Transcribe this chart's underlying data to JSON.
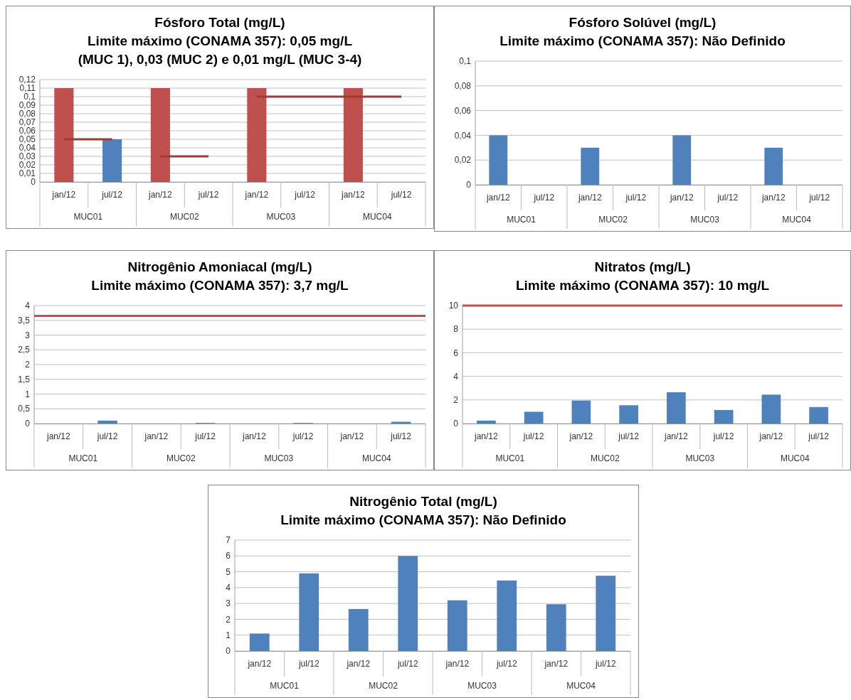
{
  "chart_data": [
    {
      "type": "bar",
      "title": "Fósforo Total (mg/L)",
      "subtitle": "Limite máximo (CONAMA 357): 0,05 mg/L\n(MUC 1), 0,03 (MUC 2) e 0,01 mg/L (MUC 3-4)",
      "categories": [
        "jan/12",
        "jul/12",
        "jan/12",
        "jul/12",
        "jan/12",
        "jul/12",
        "jan/12",
        "jul/12"
      ],
      "series": [
        {
          "colors": [
            "#c0504d",
            "#4f81bd",
            "#c0504d",
            null,
            "#c0504d",
            null,
            "#c0504d",
            null
          ],
          "values": [
            0.11,
            0.05,
            0.11,
            null,
            0.11,
            null,
            0.11,
            null
          ]
        },
        {
          "type": "step",
          "color": "#9e3a37",
          "values": [
            0.05,
            0.05,
            0.03,
            0.03,
            0.1,
            0.1,
            0.1,
            0.1
          ]
        }
      ],
      "ylim": [
        0,
        0.12
      ],
      "yticks": [
        0,
        {
          "value": 0.01,
          "label": "0,01"
        },
        {
          "value": 0.02,
          "label": "0,02"
        },
        {
          "value": 0.03,
          "label": "0,03"
        },
        {
          "value": 0.04,
          "label": "0,04"
        },
        {
          "value": 0.05,
          "label": "0,05"
        },
        {
          "value": 0.06,
          "label": "0,06"
        },
        {
          "value": 0.07,
          "label": "0,07"
        },
        {
          "value": 0.08,
          "label": "0,08"
        },
        {
          "value": 0.09,
          "label": "0,09"
        },
        {
          "value": 0.1,
          "label": "0,1"
        },
        {
          "value": 0.11,
          "label": "0,11"
        },
        {
          "value": 0.12,
          "label": "0,12"
        }
      ],
      "grid": true,
      "annotations": [
        "MUC01",
        "MUC02",
        "MUC03",
        "MUC04"
      ]
    },
    {
      "type": "bar",
      "title": "Fósforo Solúvel (mg/L)",
      "subtitle": "Limite máximo (CONAMA 357): Não Definido",
      "categories": [
        "jan/12",
        "jul/12",
        "jan/12",
        "jul/12",
        "jan/12",
        "jul/12",
        "jan/12",
        "jul/12"
      ],
      "series": [
        {
          "color": "#4f81bd",
          "values": [
            0.04,
            null,
            0.03,
            null,
            0.04,
            null,
            0.03,
            null
          ]
        }
      ],
      "ylim": [
        0,
        0.1
      ],
      "yticks": [
        0,
        {
          "value": 0.02,
          "label": "0,02"
        },
        {
          "value": 0.04,
          "label": "0,04"
        },
        {
          "value": 0.06,
          "label": "0,06"
        },
        {
          "value": 0.08,
          "label": "0,08"
        },
        {
          "value": 0.1,
          "label": "0,1"
        }
      ],
      "grid": true,
      "annotations": [
        "MUC01",
        "MUC02",
        "MUC03",
        "MUC04"
      ]
    },
    {
      "type": "bar",
      "title": "Nitrogênio Amoniacal (mg/L)",
      "subtitle": "Limite máximo (CONAMA 357): 3,7 mg/L",
      "categories": [
        "jan/12",
        "jul/12",
        "jan/12",
        "jul/12",
        "jan/12",
        "jul/12",
        "jan/12",
        "jul/12"
      ],
      "series": [
        {
          "color": "#4f81bd",
          "values": [
            null,
            0.1,
            null,
            0.02,
            null,
            0.02,
            null,
            0.06
          ]
        }
      ],
      "ylim": [
        0,
        4
      ],
      "yticks": [
        0,
        {
          "value": 0.5,
          "label": "0,5"
        },
        1,
        {
          "value": 1.5,
          "label": "1,5"
        },
        2,
        {
          "value": 2.5,
          "label": "2,5"
        },
        3,
        {
          "value": 3.5,
          "label": "3,5"
        },
        4
      ],
      "grid": true,
      "ref_lines": [
        {
          "axis": "y",
          "value": 3.65,
          "color": "#c0504d"
        }
      ],
      "annotations": [
        "MUC01",
        "MUC02",
        "MUC03",
        "MUC04"
      ]
    },
    {
      "type": "bar",
      "title": "Nitratos (mg/L)",
      "subtitle": "Limite máximo (CONAMA 357): 10 mg/L",
      "categories": [
        "jan/12",
        "jul/12",
        "jan/12",
        "jul/12",
        "jan/12",
        "jul/12",
        "jan/12",
        "jul/12"
      ],
      "series": [
        {
          "color": "#4f81bd",
          "values": [
            0.25,
            1.0,
            1.95,
            1.55,
            2.65,
            1.15,
            2.45,
            1.4
          ]
        }
      ],
      "ylim": [
        0,
        10
      ],
      "yticks": [
        0,
        2,
        4,
        6,
        8,
        10
      ],
      "grid": true,
      "ref_lines": [
        {
          "axis": "y",
          "value": 10,
          "color": "#c0504d"
        }
      ],
      "annotations": [
        "MUC01",
        "MUC02",
        "MUC03",
        "MUC04"
      ]
    },
    {
      "type": "bar",
      "title": "Nitrogênio Total (mg/L)",
      "subtitle": "Limite máximo (CONAMA 357): Não Definido",
      "categories": [
        "jan/12",
        "jul/12",
        "jan/12",
        "jul/12",
        "jan/12",
        "jul/12",
        "jan/12",
        "jul/12"
      ],
      "series": [
        {
          "color": "#4f81bd",
          "values": [
            1.1,
            4.9,
            2.65,
            6.0,
            3.2,
            4.45,
            2.95,
            4.75
          ]
        }
      ],
      "ylim": [
        0,
        7
      ],
      "yticks": [
        0,
        1,
        2,
        3,
        4,
        5,
        6,
        7
      ],
      "grid": true,
      "annotations": [
        "MUC01",
        "MUC02",
        "MUC03",
        "MUC04"
      ]
    }
  ]
}
